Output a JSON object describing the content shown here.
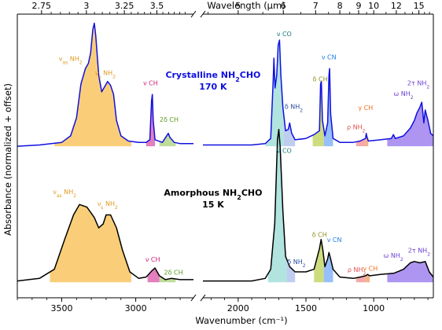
{
  "chart_data": {
    "type": "area",
    "xlabel": "Wavenumber (cm⁻¹)",
    "x2label": "Wavelength (μm)",
    "ylabel": "Absorbance (normalized + offset)",
    "x_axis_reversed": true,
    "x_axis_broken": true,
    "x_segments": [
      {
        "range": [
          3800,
          2610
        ],
        "ticks": [
          3500,
          3000
        ]
      },
      {
        "range": [
          2260,
          560
        ],
        "ticks": [
          2000,
          1500,
          1000
        ]
      }
    ],
    "x_tick_labels": [
      "3500",
      "3000",
      "2000",
      "1500",
      "1000"
    ],
    "x2_tick_labels": [
      "2.75",
      "3",
      "3.25",
      "3.5",
      "5",
      "6",
      "7",
      "8",
      "9",
      "10",
      "12",
      "15"
    ],
    "x2_tick_values_um": [
      2.75,
      3,
      3.25,
      3.5,
      5,
      6,
      7,
      8,
      9,
      10,
      12,
      15
    ],
    "series": [
      {
        "name": "Crystalline NH₂CHO 170 K",
        "color": "#1010e0",
        "offset": 1.05,
        "points": [
          [
            3800,
            0
          ],
          [
            3650,
            0.01
          ],
          [
            3500,
            0.03
          ],
          [
            3440,
            0.08
          ],
          [
            3400,
            0.22
          ],
          [
            3370,
            0.48
          ],
          [
            3340,
            0.6
          ],
          [
            3320,
            0.64
          ],
          [
            3305,
            0.72
          ],
          [
            3290,
            0.9
          ],
          [
            3280,
            0.95
          ],
          [
            3270,
            0.85
          ],
          [
            3250,
            0.55
          ],
          [
            3230,
            0.42
          ],
          [
            3210,
            0.46
          ],
          [
            3190,
            0.5
          ],
          [
            3170,
            0.47
          ],
          [
            3150,
            0.4
          ],
          [
            3130,
            0.2
          ],
          [
            3100,
            0.08
          ],
          [
            3050,
            0.04
          ],
          [
            2980,
            0.03
          ],
          [
            2930,
            0.03
          ],
          [
            2905,
            0.05
          ],
          [
            2893,
            0.35
          ],
          [
            2888,
            0.4
          ],
          [
            2882,
            0.2
          ],
          [
            2870,
            0.05
          ],
          [
            2820,
            0.03
          ],
          [
            2780,
            0.1
          ],
          [
            2770,
            0.07
          ],
          [
            2740,
            0.03
          ],
          [
            2700,
            0.02
          ],
          [
            2610,
            0.02
          ],
          [
            2260,
            0.01
          ],
          [
            1900,
            0.01
          ],
          [
            1800,
            0.02
          ],
          [
            1760,
            0.06
          ],
          [
            1742,
            0.5
          ],
          [
            1736,
            0.68
          ],
          [
            1728,
            0.45
          ],
          [
            1715,
            0.55
          ],
          [
            1705,
            0.78
          ],
          [
            1695,
            0.82
          ],
          [
            1685,
            0.55
          ],
          [
            1670,
            0.3
          ],
          [
            1650,
            0.12
          ],
          [
            1630,
            0.13
          ],
          [
            1620,
            0.18
          ],
          [
            1605,
            0.1
          ],
          [
            1580,
            0.05
          ],
          [
            1500,
            0.06
          ],
          [
            1440,
            0.09
          ],
          [
            1400,
            0.12
          ],
          [
            1392,
            0.48
          ],
          [
            1386,
            0.5
          ],
          [
            1378,
            0.2
          ],
          [
            1360,
            0.08
          ],
          [
            1340,
            0.18
          ],
          [
            1330,
            0.55
          ],
          [
            1325,
            0.6
          ],
          [
            1318,
            0.25
          ],
          [
            1300,
            0.06
          ],
          [
            1250,
            0.03
          ],
          [
            1150,
            0.03
          ],
          [
            1100,
            0.04
          ],
          [
            1060,
            0.06
          ],
          [
            1055,
            0.1
          ],
          [
            1052,
            0.08
          ],
          [
            1040,
            0.04
          ],
          [
            950,
            0.05
          ],
          [
            870,
            0.06
          ],
          [
            855,
            0.09
          ],
          [
            840,
            0.06
          ],
          [
            780,
            0.08
          ],
          [
            730,
            0.14
          ],
          [
            700,
            0.2
          ],
          [
            680,
            0.26
          ],
          [
            660,
            0.3
          ],
          [
            645,
            0.34
          ],
          [
            630,
            0.18
          ],
          [
            620,
            0.28
          ],
          [
            600,
            0.2
          ],
          [
            580,
            0.1
          ],
          [
            560,
            0.08
          ]
        ]
      },
      {
        "name": "Amorphous NH₂CHO 15 K",
        "color": "#000000",
        "offset": 0,
        "points": [
          [
            3800,
            0.01
          ],
          [
            3650,
            0.03
          ],
          [
            3550,
            0.1
          ],
          [
            3480,
            0.33
          ],
          [
            3420,
            0.52
          ],
          [
            3380,
            0.6
          ],
          [
            3330,
            0.58
          ],
          [
            3280,
            0.5
          ],
          [
            3250,
            0.42
          ],
          [
            3220,
            0.45
          ],
          [
            3200,
            0.52
          ],
          [
            3170,
            0.52
          ],
          [
            3130,
            0.42
          ],
          [
            3090,
            0.25
          ],
          [
            3040,
            0.08
          ],
          [
            2980,
            0.03
          ],
          [
            2930,
            0.04
          ],
          [
            2890,
            0.09
          ],
          [
            2870,
            0.11
          ],
          [
            2840,
            0.05
          ],
          [
            2800,
            0.02
          ],
          [
            2760,
            0.03
          ],
          [
            2700,
            0.02
          ],
          [
            2610,
            0.02
          ],
          [
            2260,
            0.01
          ],
          [
            1900,
            0.01
          ],
          [
            1800,
            0.03
          ],
          [
            1760,
            0.1
          ],
          [
            1730,
            0.45
          ],
          [
            1710,
            1.1
          ],
          [
            1700,
            1.18
          ],
          [
            1690,
            1.05
          ],
          [
            1670,
            0.55
          ],
          [
            1650,
            0.2
          ],
          [
            1620,
            0.12
          ],
          [
            1580,
            0.08
          ],
          [
            1500,
            0.08
          ],
          [
            1440,
            0.1
          ],
          [
            1400,
            0.26
          ],
          [
            1388,
            0.33
          ],
          [
            1375,
            0.25
          ],
          [
            1360,
            0.12
          ],
          [
            1340,
            0.18
          ],
          [
            1330,
            0.23
          ],
          [
            1318,
            0.18
          ],
          [
            1300,
            0.1
          ],
          [
            1250,
            0.04
          ],
          [
            1150,
            0.03
          ],
          [
            1100,
            0.04
          ],
          [
            1060,
            0.05
          ],
          [
            1045,
            0.06
          ],
          [
            1030,
            0.05
          ],
          [
            950,
            0.06
          ],
          [
            850,
            0.07
          ],
          [
            780,
            0.1
          ],
          [
            730,
            0.15
          ],
          [
            700,
            0.16
          ],
          [
            660,
            0.15
          ],
          [
            620,
            0.16
          ],
          [
            590,
            0.08
          ],
          [
            560,
            0.04
          ]
        ]
      }
    ],
    "fills": [
      {
        "series": 0,
        "range": [
          3550,
          3030
        ],
        "color": "#f9c96a"
      },
      {
        "series": 0,
        "range": [
          2930,
          2870
        ],
        "color": "#e070b8"
      },
      {
        "series": 0,
        "range": [
          2840,
          2730
        ],
        "color": "#b8d890"
      },
      {
        "series": 0,
        "range": [
          1800,
          1665
        ],
        "color": "#a8e0dc"
      },
      {
        "series": 0,
        "range": [
          1665,
          1580
        ],
        "color": "#b8c8f0"
      },
      {
        "series": 0,
        "range": [
          1450,
          1368
        ],
        "color": "#c8d870"
      },
      {
        "series": 0,
        "range": [
          1368,
          1300
        ],
        "color": "#8cb8f8"
      },
      {
        "series": 0,
        "range": [
          1130,
          1060
        ],
        "color": "#f4a0a0"
      },
      {
        "series": 0,
        "range": [
          1060,
          1040
        ],
        "color": "#f6a878"
      },
      {
        "series": 0,
        "range": [
          900,
          560
        ],
        "color": "#a48af0"
      },
      {
        "series": 1,
        "range": [
          3580,
          3030
        ],
        "color": "#f9c96a"
      },
      {
        "series": 1,
        "range": [
          2920,
          2840
        ],
        "color": "#e070b8"
      },
      {
        "series": 1,
        "range": [
          2840,
          2730
        ],
        "color": "#b8d890"
      },
      {
        "series": 1,
        "range": [
          1780,
          1640
        ],
        "color": "#a8e0dc"
      },
      {
        "series": 1,
        "range": [
          1640,
          1580
        ],
        "color": "#b8c8f0"
      },
      {
        "series": 1,
        "range": [
          1440,
          1368
        ],
        "color": "#c8d870"
      },
      {
        "series": 1,
        "range": [
          1368,
          1300
        ],
        "color": "#8cb8f8"
      },
      {
        "series": 1,
        "range": [
          1130,
          1060
        ],
        "color": "#f4a0a0"
      },
      {
        "series": 1,
        "range": [
          1060,
          1030
        ],
        "color": "#f6a878"
      },
      {
        "series": 1,
        "range": [
          900,
          560
        ],
        "color": "#a48af0"
      }
    ],
    "annotations": [
      {
        "text": "ν",
        "sub": "as",
        "text2": " NH",
        "sub2": "2",
        "x": 3440,
        "y": 1.71,
        "color": "#e09a20"
      },
      {
        "text": "ν",
        "sub": "s",
        "text2": " NH",
        "sub2": "2",
        "x": 3205,
        "y": 1.6,
        "color": "#e09a20"
      },
      {
        "text": "ν CH",
        "x": 2900,
        "y": 1.52,
        "color": "#d0207a"
      },
      {
        "text": "2δ CH",
        "x": 2775,
        "y": 1.24,
        "color": "#5a9a20"
      },
      {
        "text": "ν CO",
        "x": 1660,
        "y": 1.9,
        "color": "#1a7a80"
      },
      {
        "text": "δ NH",
        "sub": "2",
        "x": 1590,
        "y": 1.34,
        "color": "#2a4aa0"
      },
      {
        "text": "δ CH",
        "x": 1395,
        "y": 1.55,
        "color": "#909020"
      },
      {
        "text": "ν CN",
        "x": 1330,
        "y": 1.72,
        "color": "#2080e0"
      },
      {
        "text": "ρ NH",
        "sub": "2",
        "x": 1130,
        "y": 1.18,
        "color": "#e05050"
      },
      {
        "text": "γ CH",
        "x": 1060,
        "y": 1.33,
        "color": "#f07020"
      },
      {
        "text": "2τ NH",
        "sub": "2",
        "x": 670,
        "y": 1.52,
        "color": "#6a40d0"
      },
      {
        "text": "ω NH",
        "sub": "2",
        "x": 780,
        "y": 1.44,
        "color": "#6a40d0"
      },
      {
        "text": "ν",
        "sub": "as",
        "text2": " NH",
        "sub2": "2",
        "x": 3480,
        "y": 0.68,
        "color": "#e09a20"
      },
      {
        "text": "ν",
        "sub": "s",
        "text2": " NH",
        "sub2": "2",
        "x": 3190,
        "y": 0.59,
        "color": "#e09a20"
      },
      {
        "text": "ν CH",
        "x": 2885,
        "y": 0.16,
        "color": "#d0207a"
      },
      {
        "text": "2δ CH",
        "x": 2745,
        "y": 0.06,
        "color": "#5a9a20"
      },
      {
        "text": "ν CO",
        "x": 1660,
        "y": 1.0,
        "color": "#1a7a80"
      },
      {
        "text": "δ NH",
        "sub": "2",
        "x": 1570,
        "y": 0.14,
        "color": "#2a4aa0"
      },
      {
        "text": "δ CH",
        "x": 1400,
        "y": 0.35,
        "color": "#909020"
      },
      {
        "text": "ν CN",
        "x": 1290,
        "y": 0.31,
        "color": "#2080e0"
      },
      {
        "text": "ρ NH",
        "sub": "2",
        "x": 1125,
        "y": 0.08,
        "color": "#e05050"
      },
      {
        "text": "γ CH",
        "x": 1025,
        "y": 0.09,
        "color": "#f07020"
      },
      {
        "text": "ω NH",
        "sub": "2",
        "x": 855,
        "y": 0.19,
        "color": "#6a40d0"
      },
      {
        "text": "2τ NH",
        "sub": "2",
        "x": 665,
        "y": 0.23,
        "color": "#6a40d0"
      }
    ],
    "sample_labels": [
      {
        "line1": "Crystalline NH",
        "sub": "2",
        "line1b": "CHO",
        "line2": "170 K",
        "x": 2185,
        "y": 1.58,
        "color": "#1010e0"
      },
      {
        "line1": "Amorphous NH",
        "sub": "2",
        "line1b": "CHO",
        "line2": "15 K",
        "x": 2185,
        "y": 0.67,
        "color": "#000000"
      }
    ],
    "ylim": [
      -0.12,
      2.07
    ]
  }
}
